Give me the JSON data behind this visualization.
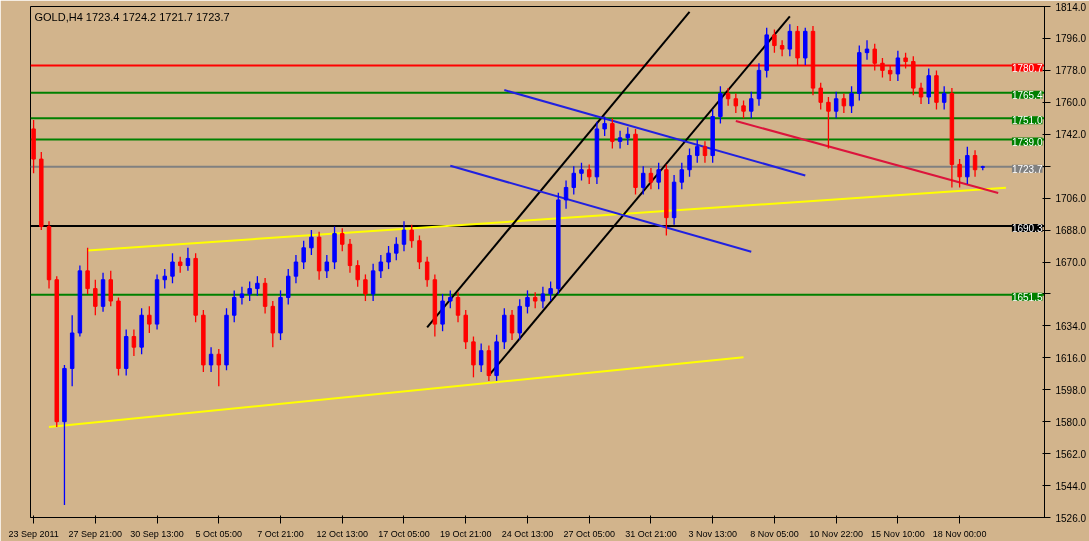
{
  "chart_data": {
    "type": "candlestick",
    "title": "GOLD,H4  1723.4 1724.2 1721.7 1723.7",
    "categories": [
      "23 Sep 2011",
      null,
      null,
      null,
      null,
      null,
      null,
      null,
      "27 Sep 21:00",
      null,
      null,
      null,
      null,
      null,
      null,
      null,
      "30 Sep 13:00",
      null,
      null,
      null,
      null,
      null,
      null,
      null,
      "5 Oct 05:00",
      null,
      null,
      null,
      null,
      null,
      null,
      null,
      "7 Oct 21:00",
      null,
      null,
      null,
      null,
      null,
      null,
      null,
      "12 Oct 13:00",
      null,
      null,
      null,
      null,
      null,
      null,
      null,
      "17 Oct 05:00",
      null,
      null,
      null,
      null,
      null,
      null,
      null,
      "19 Oct 21:00",
      null,
      null,
      null,
      null,
      null,
      null,
      null,
      "24 Oct 13:00",
      null,
      null,
      null,
      null,
      null,
      null,
      null,
      "27 Oct 05:00",
      null,
      null,
      null,
      null,
      null,
      null,
      null,
      "31 Oct 21:00",
      null,
      null,
      null,
      null,
      null,
      null,
      null,
      "3 Nov 13:00",
      null,
      null,
      null,
      null,
      null,
      null,
      null,
      "8 Nov 05:00",
      null,
      null,
      null,
      null,
      null,
      null,
      null,
      "10 Nov 22:00",
      null,
      null,
      null,
      null,
      null,
      null,
      null,
      "15 Nov 10:00",
      null,
      null,
      null,
      null,
      null,
      null,
      null,
      "18 Nov 00:00",
      null,
      null,
      null,
      null,
      null,
      null
    ],
    "ohlc": [
      [
        1745,
        1750,
        1720,
        1728
      ],
      [
        1728,
        1732,
        1688,
        1690
      ],
      [
        1690,
        1693,
        1655,
        1660
      ],
      [
        1660,
        1662,
        1577,
        1580
      ],
      [
        1580,
        1612,
        1533,
        1610
      ],
      [
        1610,
        1640,
        1600,
        1630
      ],
      [
        1630,
        1668,
        1628,
        1665
      ],
      [
        1665,
        1678,
        1652,
        1655
      ],
      [
        1655,
        1660,
        1640,
        1645
      ],
      [
        1645,
        1664,
        1642,
        1660
      ],
      [
        1660,
        1665,
        1645,
        1648
      ],
      [
        1648,
        1650,
        1606,
        1610
      ],
      [
        1610,
        1632,
        1606,
        1628
      ],
      [
        1628,
        1632,
        1617,
        1622
      ],
      [
        1622,
        1644,
        1618,
        1640
      ],
      [
        1640,
        1645,
        1630,
        1635
      ],
      [
        1635,
        1663,
        1632,
        1660
      ],
      [
        1660,
        1666,
        1655,
        1662
      ],
      [
        1662,
        1675,
        1658,
        1670
      ],
      [
        1670,
        1673,
        1664,
        1668
      ],
      [
        1668,
        1678,
        1665,
        1672
      ],
      [
        1672,
        1675,
        1636,
        1640
      ],
      [
        1640,
        1643,
        1608,
        1612
      ],
      [
        1612,
        1622,
        1608,
        1618
      ],
      [
        1618,
        1621,
        1600,
        1612
      ],
      [
        1612,
        1644,
        1609,
        1640
      ],
      [
        1640,
        1654,
        1636,
        1650
      ],
      [
        1650,
        1656,
        1646,
        1652
      ],
      [
        1652,
        1659,
        1648,
        1655
      ],
      [
        1655,
        1662,
        1651,
        1658
      ],
      [
        1658,
        1661,
        1641,
        1645
      ],
      [
        1645,
        1648,
        1622,
        1630
      ],
      [
        1630,
        1654,
        1626,
        1650
      ],
      [
        1650,
        1666,
        1646,
        1662
      ],
      [
        1662,
        1674,
        1658,
        1670
      ],
      [
        1670,
        1682,
        1666,
        1678
      ],
      [
        1678,
        1688,
        1674,
        1684
      ],
      [
        1684,
        1687,
        1660,
        1665
      ],
      [
        1665,
        1674,
        1661,
        1670
      ],
      [
        1670,
        1690,
        1666,
        1686
      ],
      [
        1686,
        1689,
        1676,
        1680
      ],
      [
        1680,
        1683,
        1664,
        1668
      ],
      [
        1668,
        1671,
        1656,
        1660
      ],
      [
        1660,
        1663,
        1648,
        1652
      ],
      [
        1652,
        1669,
        1648,
        1665
      ],
      [
        1665,
        1674,
        1661,
        1670
      ],
      [
        1670,
        1679,
        1666,
        1675
      ],
      [
        1675,
        1684,
        1671,
        1680
      ],
      [
        1680,
        1693,
        1676,
        1688
      ],
      [
        1688,
        1691,
        1678,
        1682
      ],
      [
        1682,
        1685,
        1666,
        1670
      ],
      [
        1670,
        1673,
        1656,
        1660
      ],
      [
        1660,
        1663,
        1628,
        1635
      ],
      [
        1635,
        1652,
        1631,
        1648
      ],
      [
        1648,
        1654,
        1644,
        1650
      ],
      [
        1650,
        1653,
        1636,
        1640
      ],
      [
        1640,
        1643,
        1621,
        1625
      ],
      [
        1625,
        1628,
        1605,
        1612
      ],
      [
        1612,
        1624,
        1608,
        1620
      ],
      [
        1620,
        1623,
        1603,
        1606
      ],
      [
        1606,
        1629,
        1603,
        1625
      ],
      [
        1625,
        1644,
        1621,
        1640
      ],
      [
        1640,
        1643,
        1626,
        1630
      ],
      [
        1630,
        1649,
        1626,
        1645
      ],
      [
        1645,
        1654,
        1641,
        1650
      ],
      [
        1650,
        1653,
        1644,
        1648
      ],
      [
        1648,
        1656,
        1644,
        1652
      ],
      [
        1652,
        1659,
        1648,
        1655
      ],
      [
        1655,
        1709,
        1652,
        1705
      ],
      [
        1705,
        1716,
        1700,
        1712
      ],
      [
        1712,
        1724,
        1708,
        1720
      ],
      [
        1720,
        1726,
        1716,
        1722
      ],
      [
        1722,
        1725,
        1714,
        1718
      ],
      [
        1718,
        1749,
        1714,
        1745
      ],
      [
        1745,
        1752,
        1741,
        1748
      ],
      [
        1748,
        1751,
        1734,
        1738
      ],
      [
        1738,
        1744,
        1734,
        1740
      ],
      [
        1740,
        1746,
        1736,
        1742
      ],
      [
        1742,
        1745,
        1708,
        1712
      ],
      [
        1712,
        1724,
        1708,
        1720
      ],
      [
        1720,
        1723,
        1711,
        1715
      ],
      [
        1715,
        1726,
        1711,
        1722
      ],
      [
        1722,
        1725,
        1685,
        1695
      ],
      [
        1695,
        1719,
        1691,
        1715
      ],
      [
        1715,
        1726,
        1711,
        1722
      ],
      [
        1722,
        1734,
        1718,
        1730
      ],
      [
        1730,
        1739,
        1726,
        1735
      ],
      [
        1735,
        1738,
        1726,
        1730
      ],
      [
        1730,
        1756,
        1726,
        1752
      ],
      [
        1752,
        1769,
        1748,
        1765
      ],
      [
        1765,
        1768,
        1758,
        1762
      ],
      [
        1762,
        1765,
        1754,
        1758
      ],
      [
        1758,
        1761,
        1751,
        1755
      ],
      [
        1755,
        1766,
        1751,
        1762
      ],
      [
        1762,
        1782,
        1758,
        1778
      ],
      [
        1778,
        1802,
        1774,
        1798
      ],
      [
        1798,
        1801,
        1788,
        1792
      ],
      [
        1792,
        1795,
        1786,
        1790
      ],
      [
        1790,
        1804,
        1786,
        1800
      ],
      [
        1800,
        1803,
        1781,
        1785
      ],
      [
        1785,
        1802,
        1781,
        1800
      ],
      [
        1800,
        1803,
        1764,
        1768
      ],
      [
        1768,
        1771,
        1756,
        1760
      ],
      [
        1760,
        1763,
        1734,
        1755
      ],
      [
        1755,
        1766,
        1751,
        1762
      ],
      [
        1762,
        1765,
        1754,
        1758
      ],
      [
        1758,
        1769,
        1754,
        1765
      ],
      [
        1765,
        1792,
        1761,
        1788
      ],
      [
        1788,
        1795,
        1784,
        1790
      ],
      [
        1790,
        1793,
        1778,
        1782
      ],
      [
        1782,
        1785,
        1774,
        1778
      ],
      [
        1778,
        1781,
        1772,
        1776
      ],
      [
        1776,
        1789,
        1772,
        1785
      ],
      [
        1785,
        1788,
        1779,
        1783
      ],
      [
        1783,
        1786,
        1764,
        1768
      ],
      [
        1768,
        1771,
        1759,
        1763
      ],
      [
        1763,
        1779,
        1759,
        1775
      ],
      [
        1775,
        1778,
        1756,
        1760
      ],
      [
        1760,
        1769,
        1756,
        1765
      ],
      [
        1765,
        1768,
        1712,
        1725
      ],
      [
        1725,
        1728,
        1712,
        1718
      ],
      [
        1718,
        1735,
        1714,
        1730
      ],
      [
        1730,
        1733,
        1718,
        1722
      ],
      [
        1723.4,
        1724.2,
        1721.7,
        1723.7
      ],
      null,
      null,
      null
    ],
    "colors": [
      "#ff0000",
      "#ff0000",
      "#ff0000",
      "#ff0000",
      "#0000ff",
      "#0000ff",
      "#0000ff",
      "#ff0000",
      "#ff0000",
      "#0000ff",
      "#ff0000",
      "#ff0000",
      "#0000ff",
      "#ff0000",
      "#0000ff",
      "#ff0000",
      "#0000ff",
      "#0000ff",
      "#0000ff",
      "#ff0000",
      "#0000ff",
      "#ff0000",
      "#ff0000",
      "#0000ff",
      "#ff0000",
      "#0000ff",
      "#0000ff",
      "#0000ff",
      "#0000ff",
      "#0000ff",
      "#ff0000",
      "#ff0000",
      "#0000ff",
      "#0000ff",
      "#0000ff",
      "#0000ff",
      "#0000ff",
      "#ff0000",
      "#0000ff",
      "#0000ff",
      "#ff0000",
      "#ff0000",
      "#ff0000",
      "#ff0000",
      "#0000ff",
      "#0000ff",
      "#0000ff",
      "#0000ff",
      "#0000ff",
      "#ff0000",
      "#ff0000",
      "#ff0000",
      "#ff0000",
      "#0000ff",
      "#0000ff",
      "#ff0000",
      "#ff0000",
      "#ff0000",
      "#0000ff",
      "#ff0000",
      "#0000ff",
      "#0000ff",
      "#ff0000",
      "#0000ff",
      "#0000ff",
      "#ff0000",
      "#0000ff",
      "#0000ff",
      "#0000ff",
      "#0000ff",
      "#0000ff",
      "#0000ff",
      "#ff0000",
      "#0000ff",
      "#0000ff",
      "#ff0000",
      "#0000ff",
      "#0000ff",
      "#ff0000",
      "#0000ff",
      "#ff0000",
      "#0000ff",
      "#ff0000",
      "#0000ff",
      "#0000ff",
      "#0000ff",
      "#0000ff",
      "#ff0000",
      "#0000ff",
      "#0000ff",
      "#ff0000",
      "#ff0000",
      "#ff0000",
      "#0000ff",
      "#0000ff",
      "#0000ff",
      "#ff0000",
      "#ff0000",
      "#0000ff",
      "#ff0000",
      "#0000ff",
      "#ff0000",
      "#ff0000",
      "#ff0000",
      "#0000ff",
      "#ff0000",
      "#0000ff",
      "#0000ff",
      "#0000ff",
      "#ff0000",
      "#ff0000",
      "#ff0000",
      "#0000ff",
      "#ff0000",
      "#ff0000",
      "#ff0000",
      "#0000ff",
      "#ff0000",
      "#0000ff",
      "#ff0000",
      "#ff0000",
      "#0000ff",
      "#ff0000",
      "#0000ff",
      null,
      null,
      null
    ],
    "series": [
      {
        "type": "line",
        "color": "#ffff00",
        "values": [
          null,
          null,
          null,
          null,
          null,
          null,
          null,
          1676.5,
          null,
          null,
          null,
          null,
          null,
          null,
          null,
          null,
          null,
          null,
          null,
          null,
          null,
          null,
          null,
          null,
          null,
          null,
          null,
          null,
          null,
          null,
          null,
          null,
          null,
          null,
          null,
          null,
          null,
          null,
          null,
          null,
          null,
          null,
          null,
          null,
          null,
          null,
          null,
          null,
          null,
          null,
          null,
          null,
          null,
          null,
          null,
          null,
          null,
          null,
          null,
          null,
          null,
          null,
          null,
          null,
          null,
          null,
          null,
          null,
          null,
          null,
          null,
          null,
          null,
          null,
          null,
          null,
          null,
          null,
          null,
          null,
          null,
          null,
          null,
          null,
          null,
          null,
          null,
          null,
          null,
          null,
          null,
          null,
          null,
          null,
          null,
          null,
          null,
          null,
          null,
          null,
          null,
          null,
          null,
          null,
          null,
          null,
          null,
          null,
          null,
          null,
          null,
          null,
          null,
          null,
          null,
          null,
          null,
          null,
          null,
          null,
          null,
          null,
          null,
          null,
          null,
          null,
          1711.8
        ]
      },
      {
        "type": "line",
        "color": "#ffff00",
        "values": [
          null,
          null,
          1577.0,
          null,
          null,
          null,
          null,
          null,
          null,
          null,
          null,
          null,
          null,
          null,
          null,
          null,
          null,
          null,
          null,
          null,
          null,
          null,
          null,
          null,
          null,
          null,
          null,
          null,
          null,
          null,
          null,
          null,
          null,
          null,
          null,
          null,
          null,
          null,
          null,
          null,
          null,
          null,
          null,
          null,
          null,
          null,
          null,
          null,
          null,
          null,
          null,
          null,
          null,
          null,
          null,
          null,
          null,
          null,
          null,
          null,
          null,
          null,
          null,
          null,
          null,
          null,
          null,
          null,
          null,
          null,
          null,
          null,
          null,
          null,
          null,
          null,
          null,
          null,
          null,
          null,
          null,
          null,
          null,
          null,
          null,
          null,
          null,
          null,
          null,
          null,
          null,
          null,
          1616.3,
          null,
          null,
          null,
          null,
          null,
          null,
          null,
          null,
          null,
          null,
          null,
          null,
          null,
          null,
          null,
          null,
          null,
          null,
          null,
          null,
          null,
          null,
          null,
          null,
          null,
          null,
          null,
          null,
          null,
          null,
          null,
          null,
          null,
          null
        ]
      },
      {
        "type": "line",
        "color": "#000000",
        "values": [
          null,
          null,
          null,
          null,
          null,
          null,
          null,
          null,
          null,
          null,
          null,
          null,
          null,
          null,
          null,
          null,
          null,
          null,
          null,
          null,
          null,
          null,
          null,
          null,
          null,
          null,
          null,
          null,
          null,
          null,
          null,
          null,
          null,
          null,
          null,
          null,
          null,
          null,
          null,
          null,
          null,
          null,
          null,
          null,
          null,
          null,
          null,
          null,
          null,
          null,
          null,
          1633.2,
          null,
          null,
          null,
          null,
          null,
          null,
          null,
          null,
          null,
          null,
          null,
          null,
          null,
          null,
          null,
          null,
          null,
          null,
          null,
          null,
          null,
          null,
          null,
          null,
          null,
          null,
          null,
          null,
          null,
          null,
          null,
          null,
          null,
          1811.0,
          null,
          null,
          null,
          null,
          null,
          null,
          null,
          null,
          null,
          null,
          null,
          null,
          null,
          null,
          null,
          null,
          null,
          null,
          null,
          null,
          null,
          null,
          null,
          null,
          null,
          null,
          null,
          null,
          null,
          null,
          null,
          null,
          null,
          null,
          null,
          null,
          null,
          null,
          null,
          null,
          null
        ]
      },
      {
        "type": "line",
        "color": "#000000",
        "values": [
          null,
          null,
          null,
          null,
          null,
          null,
          null,
          null,
          null,
          null,
          null,
          null,
          null,
          null,
          null,
          null,
          null,
          null,
          null,
          null,
          null,
          null,
          null,
          null,
          null,
          null,
          null,
          null,
          null,
          null,
          null,
          null,
          null,
          null,
          null,
          null,
          null,
          null,
          null,
          null,
          null,
          null,
          null,
          null,
          null,
          null,
          null,
          null,
          null,
          null,
          null,
          null,
          null,
          null,
          null,
          null,
          null,
          null,
          null,
          1606.1,
          null,
          null,
          null,
          null,
          null,
          null,
          null,
          null,
          null,
          null,
          null,
          null,
          null,
          null,
          null,
          null,
          null,
          null,
          null,
          null,
          null,
          null,
          null,
          null,
          null,
          null,
          null,
          null,
          null,
          null,
          null,
          null,
          null,
          null,
          null,
          null,
          null,
          null,
          1808.4,
          null,
          null,
          null,
          null,
          null,
          null,
          null,
          null,
          null,
          null,
          null,
          null,
          null,
          null,
          null,
          null,
          null,
          null,
          null,
          null,
          null,
          null,
          null,
          null,
          null,
          null,
          null,
          null
        ]
      },
      {
        "type": "line",
        "color": "#2020e0",
        "values": [
          null,
          null,
          null,
          null,
          null,
          null,
          null,
          null,
          null,
          null,
          null,
          null,
          null,
          null,
          null,
          null,
          null,
          null,
          null,
          null,
          null,
          null,
          null,
          null,
          null,
          null,
          null,
          null,
          null,
          null,
          null,
          null,
          null,
          null,
          null,
          null,
          null,
          null,
          null,
          null,
          null,
          null,
          null,
          null,
          null,
          null,
          null,
          null,
          null,
          null,
          null,
          null,
          null,
          null,
          null,
          null,
          null,
          null,
          null,
          null,
          null,
          1766.9,
          null,
          null,
          null,
          null,
          null,
          null,
          null,
          null,
          null,
          null,
          null,
          null,
          null,
          null,
          null,
          null,
          null,
          null,
          null,
          null,
          null,
          null,
          null,
          null,
          null,
          null,
          null,
          null,
          null,
          null,
          null,
          null,
          null,
          null,
          null,
          null,
          null,
          null,
          1718.8,
          null,
          null,
          null,
          null,
          null,
          null,
          null,
          null,
          null,
          null,
          null,
          null,
          null,
          null,
          null,
          null,
          null,
          null,
          null,
          null,
          null,
          null,
          null,
          null,
          null,
          null
        ]
      },
      {
        "type": "line",
        "color": "#2020e0",
        "values": [
          null,
          null,
          null,
          null,
          null,
          null,
          null,
          null,
          null,
          null,
          null,
          null,
          null,
          null,
          null,
          null,
          null,
          null,
          null,
          null,
          null,
          null,
          null,
          null,
          null,
          null,
          null,
          null,
          null,
          null,
          null,
          null,
          null,
          null,
          null,
          null,
          null,
          null,
          null,
          null,
          null,
          null,
          null,
          null,
          null,
          null,
          null,
          null,
          null,
          null,
          null,
          null,
          null,
          null,
          1724.2,
          null,
          null,
          null,
          null,
          null,
          null,
          null,
          null,
          null,
          null,
          null,
          null,
          null,
          null,
          null,
          null,
          null,
          null,
          null,
          null,
          null,
          null,
          null,
          null,
          null,
          null,
          null,
          null,
          null,
          null,
          null,
          null,
          null,
          null,
          null,
          null,
          null,
          null,
          1675.8,
          null,
          null,
          null,
          null,
          null,
          null,
          null,
          null,
          null,
          null,
          null,
          null,
          null,
          null,
          null,
          null,
          null,
          null,
          null,
          null,
          null,
          null,
          null,
          null,
          null,
          null,
          null,
          null,
          null,
          null,
          null,
          null,
          null
        ]
      },
      {
        "type": "line",
        "color": "#dc143c",
        "values": [
          null,
          null,
          null,
          null,
          null,
          null,
          null,
          null,
          null,
          null,
          null,
          null,
          null,
          null,
          null,
          null,
          null,
          null,
          null,
          null,
          null,
          null,
          null,
          null,
          null,
          null,
          null,
          null,
          null,
          null,
          null,
          null,
          null,
          null,
          null,
          null,
          null,
          null,
          null,
          null,
          null,
          null,
          null,
          null,
          null,
          null,
          null,
          null,
          null,
          null,
          null,
          null,
          null,
          null,
          null,
          null,
          null,
          null,
          null,
          null,
          null,
          null,
          null,
          null,
          null,
          null,
          null,
          null,
          null,
          null,
          null,
          null,
          null,
          null,
          null,
          null,
          null,
          null,
          null,
          null,
          null,
          null,
          null,
          null,
          null,
          null,
          null,
          null,
          null,
          null,
          null,
          1749.5,
          null,
          null,
          null,
          null,
          null,
          null,
          null,
          null,
          null,
          null,
          null,
          null,
          null,
          null,
          null,
          null,
          null,
          null,
          null,
          null,
          null,
          null,
          null,
          null,
          null,
          null,
          null,
          null,
          null,
          null,
          null,
          null,
          null,
          1708.9,
          null
        ]
      }
    ],
    "ylim": [
      1526,
      1814
    ],
    "yticks": [
      {
        "value": 1526,
        "label": "1526.0"
      },
      {
        "value": 1544,
        "label": "1544.0"
      },
      {
        "value": 1562,
        "label": "1562.0"
      },
      {
        "value": 1580,
        "label": "1580.0"
      },
      {
        "value": 1598,
        "label": "1598.0"
      },
      {
        "value": 1616,
        "label": "1616.0"
      },
      {
        "value": 1634,
        "label": "1634.0"
      },
      {
        "value": 1652,
        "label": null
      },
      {
        "value": 1670,
        "label": "1670.0"
      },
      {
        "value": 1688,
        "label": "1688.0"
      },
      {
        "value": 1706,
        "label": "1706.0"
      },
      {
        "value": 1724,
        "label": null
      },
      {
        "value": 1742,
        "label": "1742.0"
      },
      {
        "value": 1760,
        "label": "1760.0"
      },
      {
        "value": 1778,
        "label": "1778.0"
      },
      {
        "value": 1796,
        "label": "1796.0"
      },
      {
        "value": 1814,
        "label": "1814.0"
      }
    ],
    "ref_lines": [
      {
        "axis": "y",
        "value": 1780.7,
        "label": "1780.7",
        "color": "#ff0000"
      },
      {
        "axis": "y",
        "value": 1765.4,
        "label": "1765.4",
        "color": "#008000"
      },
      {
        "axis": "y",
        "value": 1751.0,
        "label": "1751.0",
        "color": "#008000"
      },
      {
        "axis": "y",
        "value": 1739.0,
        "label": "1739.0",
        "color": "#008000"
      },
      {
        "axis": "y",
        "value": 1723.7,
        "label": "1723.7",
        "color": "#808080"
      },
      {
        "axis": "y",
        "value": 1690.3,
        "label": "1690.3",
        "color": "#000000"
      },
      {
        "axis": "y",
        "value": 1651.5,
        "label": "1651.5",
        "color": "#008000"
      }
    ],
    "grid": false
  }
}
